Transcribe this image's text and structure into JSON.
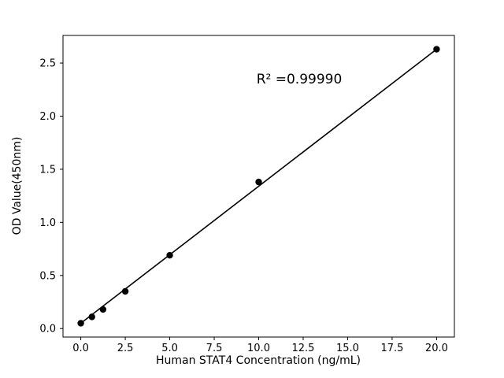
{
  "figure": {
    "background": "#ffffff"
  },
  "chart_data": {
    "type": "scatter",
    "title": "",
    "xlabel": "Human STAT4 Concentration (ng/mL)",
    "ylabel": "OD Value(450nm)",
    "annotation": "R² =0.99990",
    "x": [
      0,
      0.625,
      1.25,
      2.5,
      5,
      10,
      20
    ],
    "y": [
      0.05,
      0.11,
      0.18,
      0.35,
      0.69,
      1.38,
      2.63
    ],
    "fit_line": {
      "type": "linear",
      "from": {
        "x": 0,
        "y": 0.05
      },
      "to": {
        "x": 20,
        "y": 2.63
      }
    },
    "xticks": [
      0,
      2.5,
      5,
      7.5,
      10,
      12.5,
      15,
      17.5,
      20
    ],
    "yticks": [
      0,
      0.5,
      1,
      1.5,
      2,
      2.5
    ],
    "xlim": [
      -1,
      21
    ],
    "ylim": [
      -0.08,
      2.76
    ],
    "grid": false,
    "legend": "none",
    "marker_color": "#000000",
    "line_color": "#000000",
    "axis_color": "#000000"
  }
}
